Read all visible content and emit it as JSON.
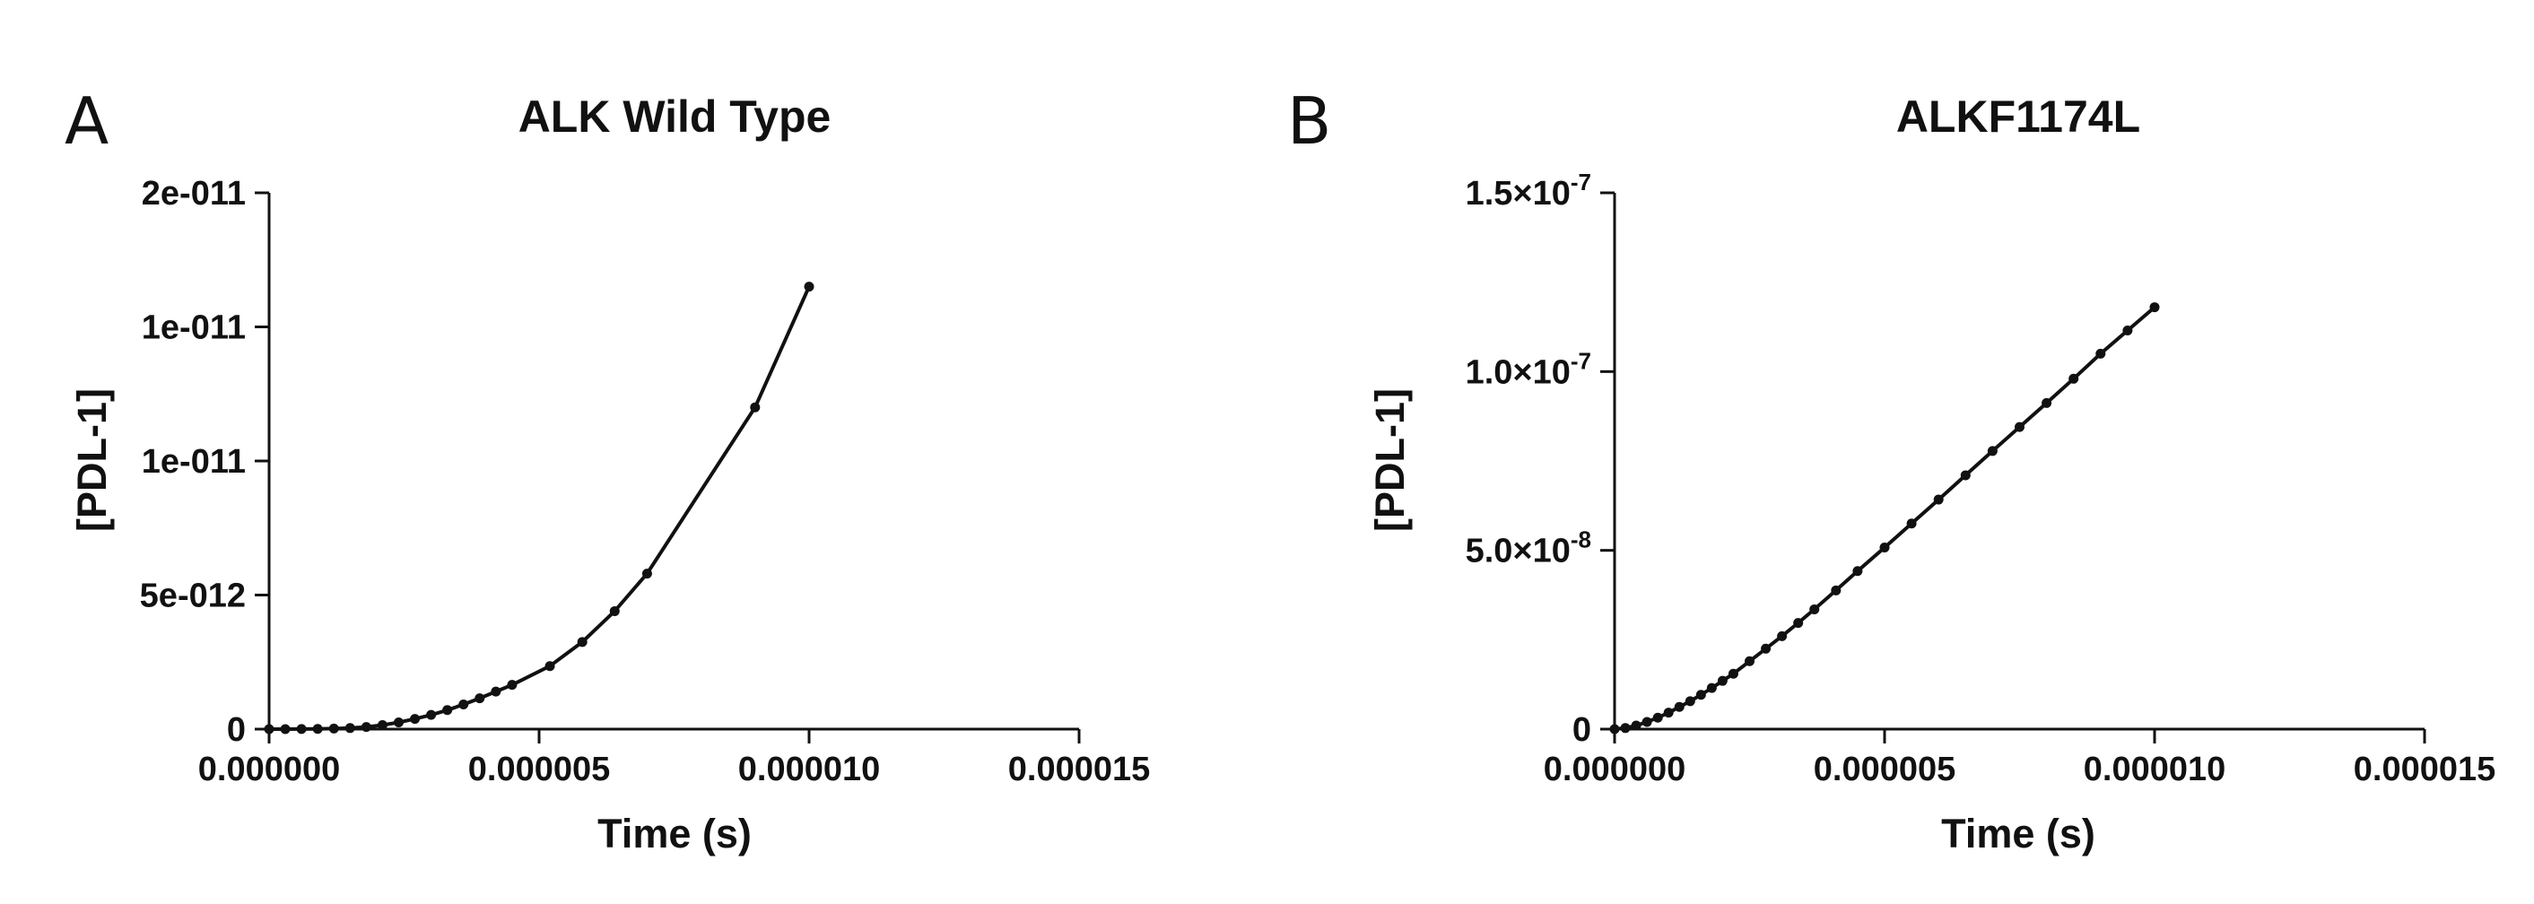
{
  "panels": [
    {
      "letter": "A"
    },
    {
      "letter": "B"
    }
  ],
  "chart_data": [
    {
      "type": "line",
      "title": "ALK Wild Type",
      "xlabel": "Time (s)",
      "ylabel": "[PDL-1]",
      "xlim": [
        0,
        1.5e-05
      ],
      "ylim": [
        0,
        2e-11
      ],
      "x_ticks": [
        0,
        5e-06,
        1e-05,
        1.5e-05
      ],
      "x_tick_labels": [
        "0.000000",
        "0.000005",
        "0.000010",
        "0.000015"
      ],
      "y_ticks": [
        0,
        5e-12,
        1e-11,
        1.5e-11,
        2e-11
      ],
      "y_tick_labels": [
        {
          "base": "0",
          "sup": ""
        },
        {
          "base": "5e-012",
          "sup": ""
        },
        {
          "base": "1e-011",
          "sup": ""
        },
        {
          "base": "1e-011",
          "sup": ""
        },
        {
          "base": "2e-011",
          "sup": ""
        }
      ],
      "grid": false,
      "legend": "none",
      "series": [
        {
          "x": [
            0,
            3e-07,
            6e-07,
            9e-07,
            1.2e-06,
            1.5e-06,
            1.8e-06,
            2.1e-06,
            2.4e-06,
            2.7e-06,
            3e-06,
            3.3e-06,
            3.6e-06,
            3.9e-06,
            4.2e-06,
            4.5e-06,
            5.2e-06,
            5.8e-06,
            6.4e-06,
            7e-06,
            9e-06,
            1e-05
          ],
          "y": [
            0,
            1e-15,
            3e-15,
            8e-15,
            2e-14,
            4e-14,
            8e-14,
            1.5e-13,
            2.5e-13,
            3.8e-13,
            5.3e-13,
            7.1e-13,
            9.2e-13,
            1.15e-12,
            1.4e-12,
            1.65e-12,
            2.35e-12,
            3.25e-12,
            4.4e-12,
            5.8e-12,
            1.2e-11,
            1.65e-11
          ]
        }
      ]
    },
    {
      "type": "line",
      "title": "ALKF1174L",
      "xlabel": "Time (s)",
      "ylabel": "[PDL-1]",
      "xlim": [
        0,
        1.5e-05
      ],
      "ylim": [
        0,
        1.5e-07
      ],
      "x_ticks": [
        0,
        5e-06,
        1e-05,
        1.5e-05
      ],
      "x_tick_labels": [
        "0.000000",
        "0.000005",
        "0.000010",
        "0.000015"
      ],
      "y_ticks": [
        0,
        5e-08,
        1e-07,
        1.5e-07
      ],
      "y_tick_labels": [
        {
          "base": "0",
          "sup": ""
        },
        {
          "base": "5.0×10",
          "sup": "-8"
        },
        {
          "base": "1.0×10",
          "sup": "-7"
        },
        {
          "base": "1.5×10",
          "sup": "-7"
        }
      ],
      "grid": false,
      "legend": "none",
      "series": [
        {
          "x": [
            0,
            2e-07,
            4e-07,
            6e-07,
            8e-07,
            1e-06,
            1.2e-06,
            1.4e-06,
            1.6e-06,
            1.8e-06,
            2e-06,
            2.2e-06,
            2.5e-06,
            2.8e-06,
            3.1e-06,
            3.4e-06,
            3.7e-06,
            4.1e-06,
            4.5e-06,
            5e-06,
            5.5e-06,
            6e-06,
            6.5e-06,
            7e-06,
            7.5e-06,
            8e-06,
            8.5e-06,
            9e-06,
            9.5e-06,
            1e-05
          ],
          "y": [
            0,
            3e-10,
            1e-09,
            2e-09,
            3.2e-09,
            4.6e-09,
            6.2e-09,
            7.8e-09,
            9.6e-09,
            1.15e-08,
            1.35e-08,
            1.55e-08,
            1.9e-08,
            2.25e-08,
            2.6e-08,
            2.97e-08,
            3.35e-08,
            3.88e-08,
            4.42e-08,
            5.08e-08,
            5.75e-08,
            6.42e-08,
            7.1e-08,
            7.78e-08,
            8.45e-08,
            9.12e-08,
            9.8e-08,
            1.05e-07,
            1.115e-07,
            1.18e-07
          ]
        }
      ]
    }
  ]
}
